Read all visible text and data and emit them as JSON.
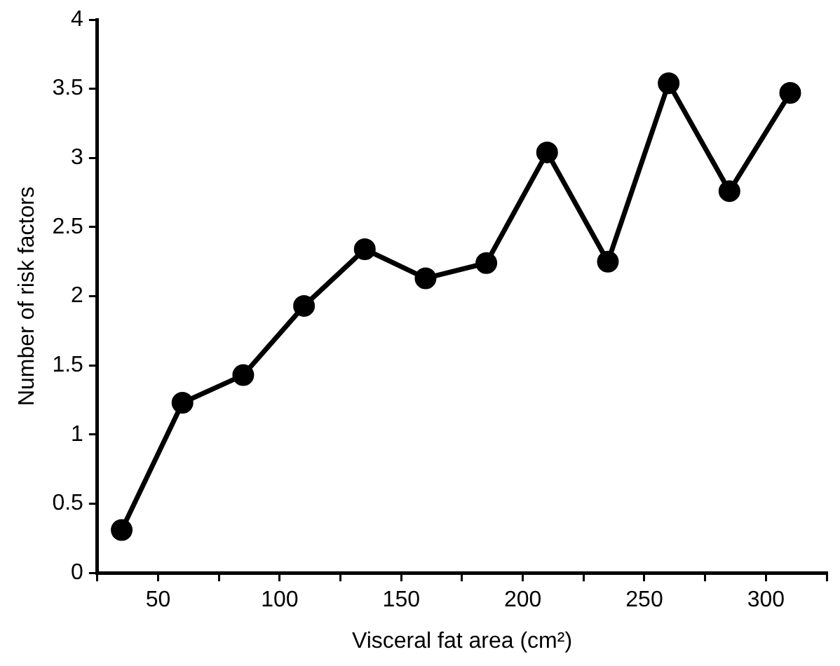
{
  "chart_data": {
    "type": "line",
    "xlabel": "Visceral fat area (cm²)",
    "ylabel": "Number of risk factors",
    "x": [
      35,
      60,
      85,
      110,
      135,
      160,
      185,
      210,
      235,
      260,
      285,
      310
    ],
    "series": [
      {
        "color": "#000000",
        "values": [
          0.31,
          1.23,
          1.43,
          1.93,
          2.34,
          2.13,
          2.24,
          3.04,
          2.25,
          3.54,
          2.76,
          3.47
        ]
      }
    ],
    "xlim": [
      25,
      325
    ],
    "xticks": [
      {
        "value": 25,
        "label": null
      },
      50,
      {
        "value": 75,
        "label": null
      },
      100,
      {
        "value": 125,
        "label": null
      },
      150,
      {
        "value": 175,
        "label": null
      },
      200,
      {
        "value": 225,
        "label": null
      },
      250,
      {
        "value": 275,
        "label": null
      },
      300,
      {
        "value": 325,
        "label": null
      }
    ],
    "ylim": [
      0,
      4
    ],
    "yticks": [
      0,
      0.5,
      1,
      1.5,
      2,
      2.5,
      3,
      3.5,
      4
    ],
    "grid": false,
    "legend": false,
    "marker": "circle",
    "line_style": "solid"
  }
}
